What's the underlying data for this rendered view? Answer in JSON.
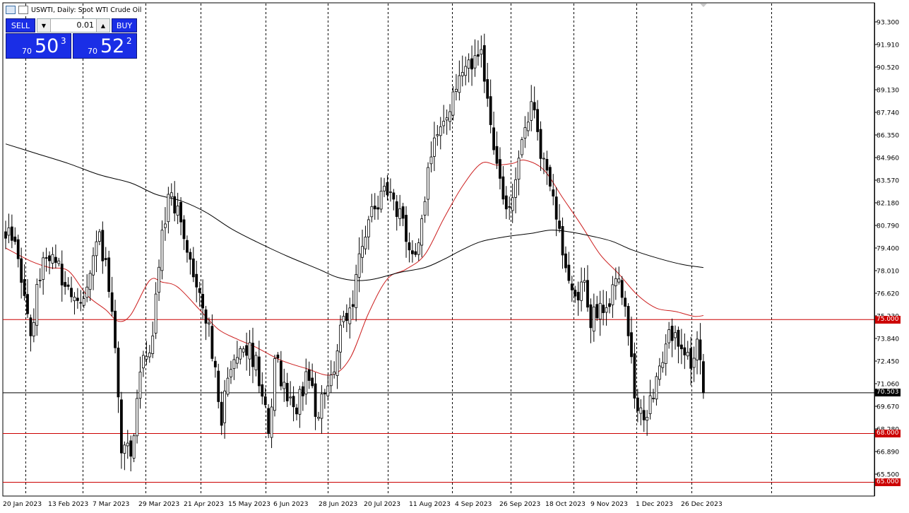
{
  "window": {
    "title": "USWTI, Daily:  Spot WTI Crude Oil"
  },
  "trade_panel": {
    "sell_label": "SELL",
    "buy_label": "BUY",
    "lot_value": "0.01",
    "bid": {
      "prefix": "70",
      "big": "50",
      "sup": "3"
    },
    "ask": {
      "prefix": "70",
      "big": "52",
      "sup": "2"
    }
  },
  "colors": {
    "background": "#ffffff",
    "candle": "#000000",
    "ma_fast": "#cc1f1f",
    "ma_slow": "#000000",
    "hline_red": "#cc0000",
    "price_line": "#000000",
    "trade_blue": "#1a2ee6"
  },
  "chart_data": {
    "type": "candlestick",
    "symbol": "USWTI",
    "timeframe": "Daily",
    "ylim": [
      63.6,
      94.3
    ],
    "y_ticks": [
      "93.300",
      "91.910",
      "90.520",
      "89.130",
      "87.740",
      "86.350",
      "84.960",
      "83.570",
      "82.180",
      "80.790",
      "79.400",
      "78.010",
      "76.620",
      "75.230",
      "73.840",
      "72.450",
      "71.060",
      "69.670",
      "68.280",
      "66.890",
      "65.500"
    ],
    "x_labels": [
      "20 Jan 2023",
      "13 Feb 2023",
      "7 Mar 2023",
      "29 Mar 2023",
      "21 Apr 2023",
      "15 May 2023",
      "6 Jun 2023",
      "28 Jun 2023",
      "20 Jul 2023",
      "11 Aug 2023",
      "4 Sep 2023",
      "26 Sep 2023",
      "18 Oct 2023",
      "9 Nov 2023",
      "1 Dec 2023",
      "26 Dec 2023"
    ],
    "grid": "vertical dashed",
    "horizontal_levels": [
      {
        "label": "75.000",
        "value": 75.0,
        "color": "#cc0000"
      },
      {
        "label": "68.000",
        "value": 68.0,
        "color": "#cc0000"
      },
      {
        "label": "65.000",
        "value": 65.0,
        "color": "#cc0000"
      }
    ],
    "current_price": {
      "label": "70.503",
      "value": 70.503
    },
    "ohlc_anchors": [
      {
        "i": 0,
        "c": 80.0
      },
      {
        "i": 3,
        "c": 79.8
      },
      {
        "i": 8,
        "c": 74.0
      },
      {
        "i": 12,
        "c": 78.8
      },
      {
        "i": 15,
        "c": 79.0
      },
      {
        "i": 21,
        "c": 76.4
      },
      {
        "i": 26,
        "c": 77.0
      },
      {
        "i": 30,
        "c": 80.4
      },
      {
        "i": 34,
        "c": 75.5
      },
      {
        "i": 37,
        "c": 66.8
      },
      {
        "i": 40,
        "c": 66.6
      },
      {
        "i": 44,
        "c": 72.8
      },
      {
        "i": 47,
        "c": 74.0
      },
      {
        "i": 50,
        "c": 80.5
      },
      {
        "i": 53,
        "c": 82.8
      },
      {
        "i": 56,
        "c": 81.0
      },
      {
        "i": 61,
        "c": 77.0
      },
      {
        "i": 65,
        "c": 74.8
      },
      {
        "i": 69,
        "c": 68.5
      },
      {
        "i": 71,
        "c": 71.4
      },
      {
        "i": 76,
        "c": 73.2
      },
      {
        "i": 80,
        "c": 72.8
      },
      {
        "i": 84,
        "c": 68.0
      },
      {
        "i": 86,
        "c": 72.6
      },
      {
        "i": 90,
        "c": 70.0
      },
      {
        "i": 93,
        "c": 69.2
      },
      {
        "i": 96,
        "c": 71.8
      },
      {
        "i": 100,
        "c": 69.0
      },
      {
        "i": 104,
        "c": 71.6
      },
      {
        "i": 108,
        "c": 75.2
      },
      {
        "i": 111,
        "c": 75.8
      },
      {
        "i": 114,
        "c": 79.5
      },
      {
        "i": 118,
        "c": 81.8
      },
      {
        "i": 121,
        "c": 83.2
      },
      {
        "i": 124,
        "c": 82.4
      },
      {
        "i": 128,
        "c": 79.8
      },
      {
        "i": 131,
        "c": 79.0
      },
      {
        "i": 133,
        "c": 81.2
      },
      {
        "i": 136,
        "c": 85.0
      },
      {
        "i": 140,
        "c": 87.2
      },
      {
        "i": 143,
        "c": 89.0
      },
      {
        "i": 146,
        "c": 90.2
      },
      {
        "i": 149,
        "c": 90.4
      },
      {
        "i": 152,
        "c": 91.6
      },
      {
        "i": 154,
        "c": 88.6
      },
      {
        "i": 157,
        "c": 84.6
      },
      {
        "i": 160,
        "c": 81.8
      },
      {
        "i": 163,
        "c": 83.6
      },
      {
        "i": 166,
        "c": 86.8
      },
      {
        "i": 168,
        "c": 88.4
      },
      {
        "i": 171,
        "c": 84.9
      },
      {
        "i": 174,
        "c": 83.2
      },
      {
        "i": 177,
        "c": 80.6
      },
      {
        "i": 180,
        "c": 77.4
      },
      {
        "i": 183,
        "c": 76.2
      },
      {
        "i": 185,
        "c": 77.4
      },
      {
        "i": 187,
        "c": 74.5
      },
      {
        "i": 190,
        "c": 76.0
      },
      {
        "i": 193,
        "c": 75.8
      },
      {
        "i": 196,
        "c": 77.5
      },
      {
        "i": 199,
        "c": 74.0
      },
      {
        "i": 202,
        "c": 69.4
      },
      {
        "i": 205,
        "c": 69.0
      },
      {
        "i": 208,
        "c": 71.5
      },
      {
        "i": 211,
        "c": 73.5
      },
      {
        "i": 214,
        "c": 74.2
      },
      {
        "i": 216,
        "c": 73.2
      },
      {
        "i": 219,
        "c": 72.0
      },
      {
        "i": 221,
        "c": 73.8
      },
      {
        "i": 223,
        "c": 70.5
      }
    ],
    "series": [
      {
        "name": "",
        "type": "moving-average",
        "color": "#cc1f1f",
        "points": [
          [
            0,
            79.4
          ],
          [
            8,
            78.6
          ],
          [
            14,
            78.2
          ],
          [
            20,
            78.0
          ],
          [
            26,
            76.5
          ],
          [
            32,
            75.6
          ],
          [
            36,
            74.9
          ],
          [
            40,
            75.3
          ],
          [
            46,
            77.4
          ],
          [
            50,
            77.3
          ],
          [
            55,
            77.0
          ],
          [
            62,
            75.6
          ],
          [
            68,
            74.4
          ],
          [
            74,
            73.8
          ],
          [
            80,
            73.3
          ],
          [
            88,
            72.5
          ],
          [
            96,
            72.0
          ],
          [
            104,
            71.6
          ],
          [
            110,
            72.6
          ],
          [
            116,
            75.4
          ],
          [
            122,
            77.5
          ],
          [
            128,
            78.1
          ],
          [
            134,
            79.0
          ],
          [
            140,
            81.2
          ],
          [
            146,
            83.2
          ],
          [
            152,
            84.6
          ],
          [
            157,
            84.5
          ],
          [
            162,
            84.6
          ],
          [
            166,
            84.8
          ],
          [
            172,
            84.2
          ],
          [
            178,
            82.5
          ],
          [
            184,
            80.8
          ],
          [
            190,
            79.0
          ],
          [
            196,
            77.8
          ],
          [
            202,
            76.5
          ],
          [
            208,
            75.7
          ],
          [
            214,
            75.5
          ],
          [
            220,
            75.2
          ],
          [
            223,
            75.25
          ]
        ]
      },
      {
        "name": "",
        "type": "moving-average",
        "color": "#000000",
        "points": [
          [
            0,
            85.8
          ],
          [
            10,
            85.2
          ],
          [
            20,
            84.6
          ],
          [
            30,
            83.9
          ],
          [
            40,
            83.4
          ],
          [
            48,
            82.7
          ],
          [
            56,
            82.3
          ],
          [
            64,
            81.6
          ],
          [
            72,
            80.6
          ],
          [
            80,
            79.8
          ],
          [
            90,
            78.9
          ],
          [
            100,
            78.1
          ],
          [
            106,
            77.6
          ],
          [
            112,
            77.4
          ],
          [
            118,
            77.5
          ],
          [
            126,
            77.9
          ],
          [
            134,
            78.2
          ],
          [
            140,
            78.7
          ],
          [
            146,
            79.3
          ],
          [
            152,
            79.8
          ],
          [
            160,
            80.1
          ],
          [
            168,
            80.3
          ],
          [
            174,
            80.5
          ],
          [
            180,
            80.4
          ],
          [
            188,
            80.1
          ],
          [
            194,
            79.8
          ],
          [
            200,
            79.3
          ],
          [
            208,
            78.8
          ],
          [
            216,
            78.4
          ],
          [
            223,
            78.2
          ]
        ]
      }
    ]
  }
}
